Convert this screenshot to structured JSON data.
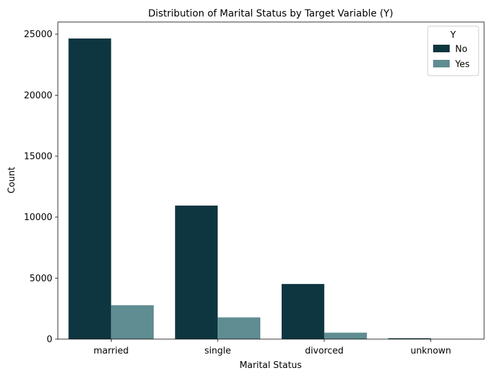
{
  "chart_data": {
    "type": "bar",
    "title": "Distribution of Marital Status by Target Variable (Y)",
    "xlabel": "Marital Status",
    "ylabel": "Count",
    "categories": [
      "married",
      "single",
      "divorced",
      "unknown"
    ],
    "series": [
      {
        "name": "No",
        "values": [
          24650,
          10950,
          4520,
          70
        ],
        "color": "#0e3640"
      },
      {
        "name": "Yes",
        "values": [
          2780,
          1780,
          530,
          15
        ],
        "color": "#5f8d92"
      }
    ],
    "ylim": [
      0,
      26000
    ],
    "yticks": [
      0,
      5000,
      10000,
      15000,
      20000,
      25000
    ],
    "legend": {
      "title": "Y",
      "position": "top-right"
    },
    "grid": false
  }
}
